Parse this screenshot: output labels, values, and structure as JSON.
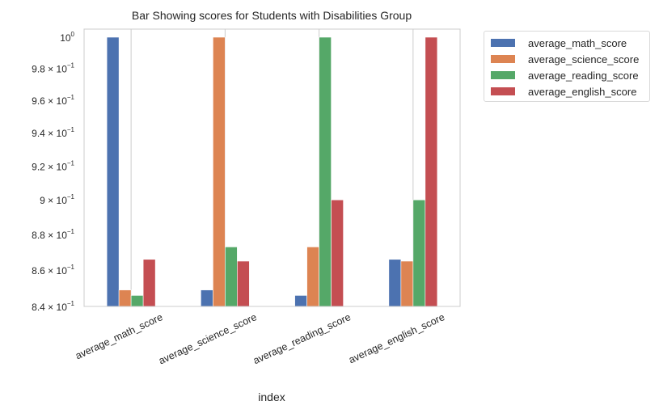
{
  "chart_data": {
    "type": "bar",
    "title": "Bar Showing scores for Students with Disabilities Group",
    "xlabel": "index",
    "ylabel": "",
    "yscale": "log",
    "ylim": [
      0.84,
      1.0
    ],
    "grid": true,
    "legend_position": "outside-top-right",
    "categories": [
      "average_math_score",
      "average_science_score",
      "average_reading_score",
      "average_english_score"
    ],
    "yticks": [
      {
        "value": 0.84,
        "base": "8.4 × 10",
        "exp": "−1"
      },
      {
        "value": 0.86,
        "base": "8.6 × 10",
        "exp": "−1"
      },
      {
        "value": 0.88,
        "base": "8.8 × 10",
        "exp": "−1"
      },
      {
        "value": 0.9,
        "base": "9 × 10",
        "exp": "−1"
      },
      {
        "value": 0.92,
        "base": "9.2 × 10",
        "exp": "−1"
      },
      {
        "value": 0.94,
        "base": "9.4 × 10",
        "exp": "−1"
      },
      {
        "value": 0.96,
        "base": "9.6 × 10",
        "exp": "−1"
      },
      {
        "value": 0.98,
        "base": "9.8 × 10",
        "exp": "−1"
      },
      {
        "value": 1.0,
        "base": "10",
        "exp": "0"
      }
    ],
    "series": [
      {
        "name": "average_math_score",
        "color": "#4c72b0",
        "values": [
          1.0,
          0.849,
          0.846,
          0.866
        ]
      },
      {
        "name": "average_science_score",
        "color": "#dd8452",
        "values": [
          0.849,
          1.0,
          0.873,
          0.865
        ]
      },
      {
        "name": "average_reading_score",
        "color": "#55a868",
        "values": [
          0.846,
          0.873,
          1.0,
          0.9
        ]
      },
      {
        "name": "average_english_score",
        "color": "#c44e52",
        "values": [
          0.866,
          0.865,
          0.9,
          1.0
        ]
      }
    ]
  }
}
